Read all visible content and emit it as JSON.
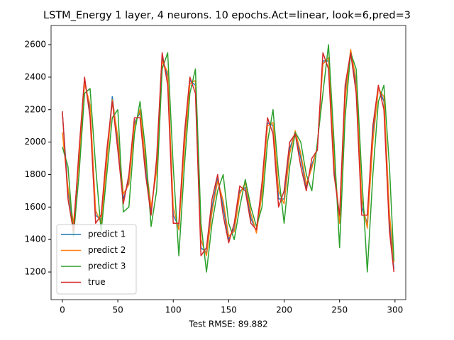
{
  "chart_data": {
    "type": "line",
    "title": "LSTM_Energy 1 layer, 4 neurons. 10 epochs.Act=linear, look=6,pred=3",
    "xlabel": "Test RMSE: 89.882",
    "x": [
      0,
      5,
      10,
      15,
      20,
      25,
      30,
      35,
      40,
      45,
      50,
      55,
      60,
      65,
      70,
      75,
      80,
      85,
      90,
      95,
      100,
      105,
      110,
      115,
      120,
      125,
      130,
      135,
      140,
      145,
      150,
      155,
      160,
      165,
      170,
      175,
      180,
      185,
      190,
      195,
      200,
      205,
      210,
      215,
      220,
      225,
      230,
      235,
      240,
      245,
      250,
      255,
      260,
      265,
      270,
      275,
      280,
      285,
      290,
      295,
      299
    ],
    "series": [
      {
        "name": "predict 1",
        "color": "#1f77b4",
        "values": [
          2180,
          1700,
          1480,
          1900,
          2380,
          2200,
          1550,
          1520,
          1900,
          2280,
          2000,
          1650,
          1760,
          2120,
          2180,
          1850,
          1580,
          1850,
          2520,
          2400,
          1550,
          1480,
          2000,
          2380,
          2350,
          1350,
          1320,
          1600,
          1780,
          1600,
          1400,
          1470,
          1700,
          1720,
          1530,
          1450,
          1700,
          2120,
          2100,
          1650,
          1650,
          1960,
          2060,
          1900,
          1720,
          1860,
          1960,
          2500,
          2500,
          1850,
          1520,
          2300,
          2560,
          2350,
          1600,
          1500,
          2050,
          2340,
          2250,
          1500,
          1220
        ]
      },
      {
        "name": "predict 2",
        "color": "#ff7f0e",
        "values": [
          2060,
          1720,
          1500,
          1880,
          2360,
          2230,
          1580,
          1500,
          1880,
          2260,
          2030,
          1680,
          1740,
          2100,
          2200,
          1880,
          1600,
          1820,
          2500,
          2430,
          1600,
          1460,
          1960,
          2360,
          2380,
          1400,
          1300,
          1570,
          1760,
          1640,
          1420,
          1450,
          1680,
          1750,
          1560,
          1440,
          1680,
          2100,
          2120,
          1700,
          1620,
          1930,
          2070,
          1930,
          1740,
          1840,
          1970,
          2480,
          2520,
          1900,
          1500,
          2260,
          2570,
          2380,
          1650,
          1470,
          2000,
          2330,
          2280,
          1560,
          1260
        ]
      },
      {
        "name": "predict 3",
        "color": "#2ca02c",
        "values": [
          1970,
          1850,
          1420,
          1800,
          2300,
          2330,
          1850,
          1450,
          1800,
          2150,
          2200,
          1570,
          1600,
          2050,
          2250,
          1950,
          1480,
          1700,
          2450,
          2550,
          1850,
          1300,
          1850,
          2300,
          2450,
          1500,
          1200,
          1500,
          1700,
          1800,
          1500,
          1400,
          1600,
          1770,
          1600,
          1480,
          1600,
          2000,
          2200,
          1800,
          1500,
          1850,
          2060,
          2000,
          1800,
          1700,
          2000,
          2300,
          2600,
          2000,
          1350,
          2150,
          2550,
          2450,
          1800,
          1200,
          1800,
          2250,
          2350,
          1850,
          1270
        ]
      },
      {
        "name": "true",
        "color": "#d62728",
        "values": [
          2190,
          1650,
          1450,
          1950,
          2400,
          2150,
          1500,
          1550,
          1950,
          2250,
          1950,
          1620,
          1800,
          2150,
          2150,
          1800,
          1550,
          1900,
          2550,
          2350,
          1500,
          1500,
          2050,
          2400,
          2300,
          1300,
          1350,
          1650,
          1800,
          1550,
          1380,
          1500,
          1730,
          1700,
          1500,
          1460,
          1750,
          2150,
          2050,
          1600,
          1700,
          2000,
          2050,
          1850,
          1700,
          1900,
          1950,
          2550,
          2450,
          1800,
          1550,
          2350,
          2550,
          2300,
          1550,
          1550,
          2100,
          2350,
          2200,
          1450,
          1200
        ]
      }
    ],
    "xlim": [
      -10.2,
      309.7
    ],
    "xticks": [
      0,
      50,
      100,
      150,
      200,
      250,
      300
    ],
    "ylim": [
      1030,
      2718
    ],
    "yticks": [
      1200,
      1400,
      1600,
      1800,
      2000,
      2200,
      2400,
      2600
    ],
    "legend": "lower left"
  }
}
